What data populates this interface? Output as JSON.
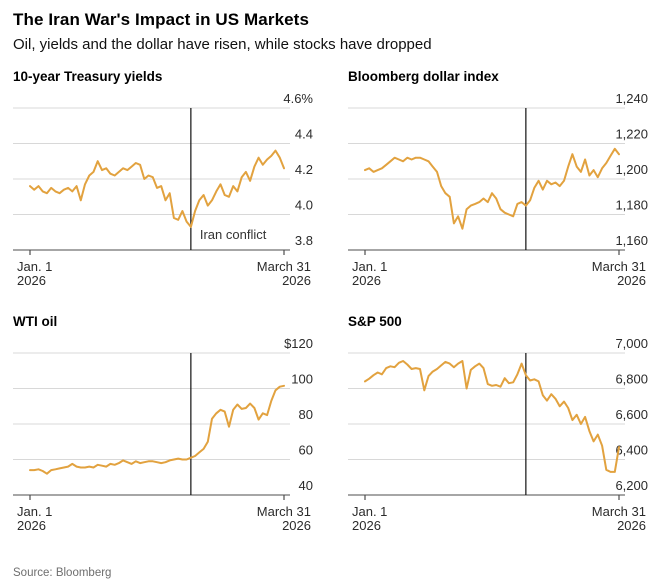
{
  "header": {
    "title": "The Iran War's Impact in US Markets",
    "subtitle": "Oil, yields and the dollar have risen, while stocks have dropped"
  },
  "source": "Source: Bloomberg",
  "colors": {
    "line": "#e2a23f",
    "grid": "#d8d8d8",
    "baseline": "#4d4d4d",
    "event_line": "#111111",
    "axis_text": "#2b2b2b",
    "annotation_text": "#333333",
    "source_text": "#6e6e6e"
  },
  "x_axis": {
    "start_line1": "Jan. 1",
    "start_line2": "2026",
    "end_line1": "March 31",
    "end_line2": "2026"
  },
  "chart_data": [
    {
      "type": "line",
      "title": "10-year Treasury yields",
      "ylim": [
        3.8,
        4.6
      ],
      "ytick_labels": [
        "4.6%",
        "4.4",
        "4.2",
        "4.0",
        "3.8"
      ],
      "grid": true,
      "legend": false,
      "event_index": 38,
      "annotation": "Iran conflict",
      "values": [
        4.16,
        4.14,
        4.16,
        4.13,
        4.12,
        4.15,
        4.13,
        4.12,
        4.14,
        4.15,
        4.13,
        4.16,
        4.08,
        4.17,
        4.22,
        4.24,
        4.3,
        4.25,
        4.26,
        4.23,
        4.22,
        4.24,
        4.26,
        4.25,
        4.27,
        4.29,
        4.28,
        4.2,
        4.22,
        4.21,
        4.15,
        4.16,
        4.08,
        4.12,
        3.98,
        3.97,
        4.02,
        3.96,
        3.93,
        4.02,
        4.08,
        4.11,
        4.05,
        4.08,
        4.13,
        4.17,
        4.11,
        4.1,
        4.16,
        4.13,
        4.21,
        4.24,
        4.19,
        4.27,
        4.32,
        4.28,
        4.31,
        4.33,
        4.36,
        4.32,
        4.26
      ]
    },
    {
      "type": "line",
      "title": "Bloomberg dollar index",
      "ylim": [
        1160,
        1240
      ],
      "ytick_labels": [
        "1,240",
        "1,220",
        "1,200",
        "1,180",
        "1,160"
      ],
      "grid": true,
      "legend": false,
      "event_index": 38,
      "annotation": null,
      "values": [
        1205,
        1206,
        1204,
        1205,
        1206,
        1208,
        1210,
        1212,
        1211,
        1210,
        1212,
        1211,
        1212,
        1212,
        1211,
        1210,
        1207,
        1204,
        1196,
        1192,
        1190,
        1175,
        1179,
        1172,
        1183,
        1185,
        1186,
        1187,
        1189,
        1187,
        1192,
        1189,
        1183,
        1181,
        1180,
        1179,
        1186,
        1187,
        1185,
        1188,
        1195,
        1199,
        1194,
        1199,
        1197,
        1198,
        1196,
        1199,
        1207,
        1214,
        1207,
        1204,
        1211,
        1202,
        1205,
        1201,
        1206,
        1209,
        1213,
        1217,
        1214
      ]
    },
    {
      "type": "line",
      "title": "WTI oil",
      "ylim": [
        40,
        120
      ],
      "ytick_labels": [
        "$120",
        "100",
        "80",
        "60",
        "40"
      ],
      "grid": true,
      "legend": false,
      "event_index": 38,
      "annotation": null,
      "values": [
        54,
        54,
        54.5,
        53.5,
        52,
        54,
        54.5,
        55,
        55.5,
        56,
        57.5,
        56,
        55.5,
        55.5,
        56,
        55.5,
        57,
        56.5,
        56,
        57.5,
        57,
        58,
        59.5,
        58.5,
        57.5,
        59,
        58,
        58.5,
        59,
        59,
        58.5,
        58,
        58.5,
        59.5,
        60,
        60.5,
        60,
        60,
        61,
        62,
        64,
        66,
        70,
        83,
        86,
        88,
        87,
        78.5,
        88,
        91,
        88.5,
        89,
        91.5,
        89,
        82.5,
        86,
        85,
        93,
        99,
        101,
        101.5
      ]
    },
    {
      "type": "line",
      "title": "S&P 500",
      "ylim": [
        6200,
        7000
      ],
      "ytick_labels": [
        "7,000",
        "6,800",
        "6,600",
        "6,400",
        "6,200"
      ],
      "grid": true,
      "legend": false,
      "event_index": 38,
      "annotation": null,
      "values": [
        6840,
        6855,
        6875,
        6890,
        6880,
        6915,
        6925,
        6920,
        6945,
        6955,
        6935,
        6910,
        6915,
        6910,
        6790,
        6870,
        6895,
        6910,
        6930,
        6950,
        6940,
        6920,
        6940,
        6955,
        6800,
        6905,
        6925,
        6940,
        6915,
        6825,
        6815,
        6820,
        6810,
        6858,
        6830,
        6835,
        6880,
        6940,
        6875,
        6845,
        6852,
        6840,
        6762,
        6732,
        6768,
        6742,
        6700,
        6726,
        6690,
        6622,
        6652,
        6600,
        6640,
        6560,
        6502,
        6540,
        6478,
        6342,
        6330,
        6330,
        6470
      ]
    }
  ]
}
